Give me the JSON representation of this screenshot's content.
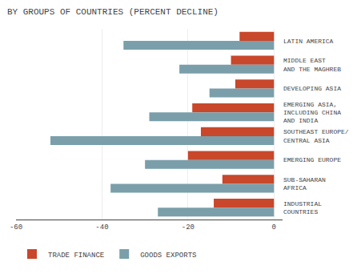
{
  "chart_data": {
    "type": "bar",
    "orientation": "horizontal",
    "title": "BY GROUPS OF COUNTRIES (PERCENT DECLINE)",
    "categories": [
      "LATIN AMERICA",
      "MIDDLE EAST\nAND THE MAGHREB",
      "DEVELOPING ASIA",
      "EMERGING ASIA,\nINCLUDING CHINA\nAND INDIA",
      "SOUTHEAST EUROPE/\nCENTRAL ASIA",
      "EMERGING EUROPE",
      "SUB-SAHARAN\nAFRICA",
      "INDUSTRIAL\nCOUNTRIES"
    ],
    "series": [
      {
        "name": "TRADE FINANCE",
        "color": "#c9472b",
        "values": [
          -8,
          -10,
          -9,
          -19,
          -17,
          -20,
          -12,
          -14
        ]
      },
      {
        "name": "GOODS EXPORTS",
        "color": "#7a9faa",
        "values": [
          -35,
          -22,
          -15,
          -29,
          -52,
          -30,
          -38,
          -27
        ]
      }
    ],
    "xlim": [
      -60,
      2
    ],
    "xticks": [
      -60,
      -40,
      -20,
      0
    ],
    "grid": true,
    "legend": "bottom"
  }
}
